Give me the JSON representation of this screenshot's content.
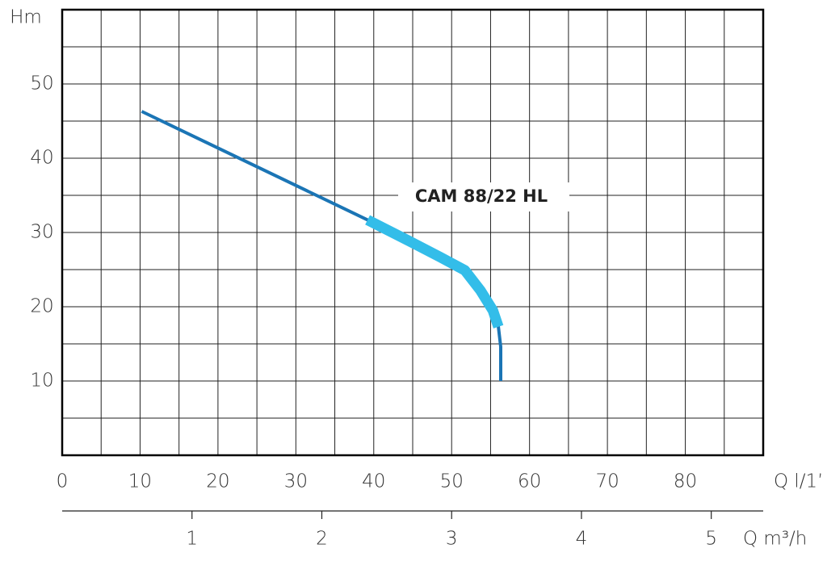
{
  "chart_data": {
    "type": "line",
    "annotation": "CAM 88/22 HL",
    "y_label": "Hm",
    "x_label": "Q l/1’",
    "x2_label": "Q m³/h",
    "xlim": [
      0,
      90
    ],
    "xticks": [
      0,
      10,
      20,
      30,
      40,
      50,
      60,
      70,
      80
    ],
    "x_minor_grid": [
      5,
      15,
      25,
      35,
      45,
      55,
      65,
      75,
      85,
      90
    ],
    "ylim": [
      0,
      60
    ],
    "yticks": [
      10,
      20,
      30,
      40,
      50
    ],
    "y_minor_grid": [
      0,
      5,
      15,
      25,
      35,
      45,
      55,
      60
    ],
    "x2lim": [
      0,
      5.4
    ],
    "x2ticks": [
      1,
      2,
      3,
      4,
      5
    ],
    "grid": true,
    "series": [
      {
        "color": "#1b75b5",
        "width": 4,
        "x": [
          10.2,
          39.2,
          43.9,
          48.5,
          51.7,
          53.7,
          55.3,
          56.0,
          56.3,
          56.3
        ],
        "values": [
          46.3,
          31.7,
          29.2,
          26.7,
          24.9,
          22.2,
          19.5,
          17.3,
          14.6,
          10
        ]
      },
      {
        "color": "#33bde9",
        "width": 13,
        "x": [
          39.2,
          43.9,
          48.5,
          51.7,
          53.7,
          55.3,
          56.0
        ],
        "values": [
          31.7,
          29.2,
          26.7,
          24.9,
          22.2,
          19.5,
          17.3
        ]
      }
    ]
  }
}
